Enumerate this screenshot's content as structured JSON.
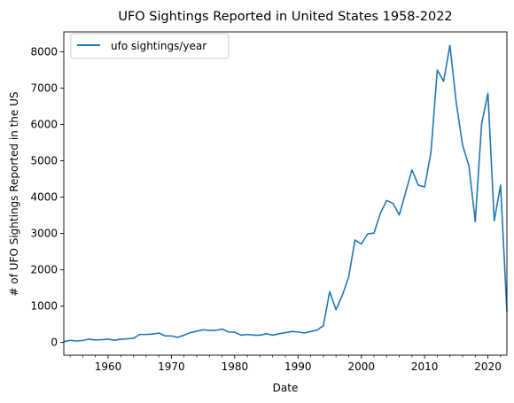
{
  "chart_data": {
    "type": "line",
    "title": "UFO Sightings Reported in United States 1958-2022",
    "xlabel": "Date",
    "ylabel": "# of UFO Sightings Reported in the US",
    "xlim": [
      1953,
      2023
    ],
    "ylim": [
      -350,
      8550
    ],
    "xticks": [
      1960,
      1970,
      1980,
      1990,
      2000,
      2010,
      2020
    ],
    "yticks": [
      0,
      1000,
      2000,
      3000,
      4000,
      5000,
      6000,
      7000,
      8000
    ],
    "grid": false,
    "legend_position": "upper-left",
    "series": [
      {
        "name": "ufo sightings/year",
        "color": "#1f77b4",
        "x": [
          1953,
          1954,
          1955,
          1956,
          1957,
          1958,
          1959,
          1960,
          1961,
          1962,
          1963,
          1964,
          1965,
          1966,
          1967,
          1968,
          1969,
          1970,
          1971,
          1972,
          1973,
          1974,
          1975,
          1976,
          1977,
          1978,
          1979,
          1980,
          1981,
          1982,
          1983,
          1984,
          1985,
          1986,
          1987,
          1988,
          1989,
          1990,
          1991,
          1992,
          1993,
          1994,
          1995,
          1996,
          1997,
          1998,
          1999,
          2000,
          2001,
          2002,
          2003,
          2004,
          2005,
          2006,
          2007,
          2008,
          2009,
          2010,
          2011,
          2012,
          2013,
          2014,
          2015,
          2016,
          2017,
          2018,
          2019,
          2020,
          2021,
          2022,
          2023
        ],
        "values": [
          20,
          60,
          40,
          55,
          90,
          70,
          75,
          90,
          60,
          90,
          100,
          115,
          220,
          220,
          230,
          260,
          180,
          180,
          140,
          200,
          270,
          310,
          350,
          330,
          330,
          370,
          290,
          280,
          200,
          220,
          200,
          200,
          240,
          200,
          240,
          270,
          300,
          290,
          260,
          300,
          340,
          460,
          1400,
          900,
          1300,
          1800,
          2820,
          2710,
          2990,
          3010,
          3550,
          3910,
          3830,
          3510,
          4130,
          4750,
          4330,
          4280,
          5230,
          7500,
          7190,
          8180,
          6600,
          5430,
          4860,
          3330,
          6010,
          6860,
          3350,
          4330,
          850
        ]
      }
    ]
  }
}
